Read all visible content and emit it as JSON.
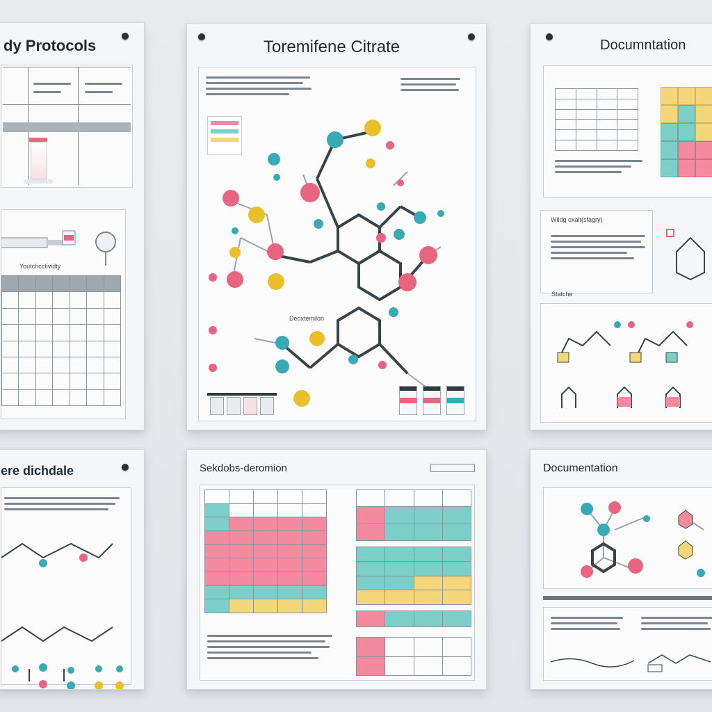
{
  "posters": {
    "top_left": {
      "title": "dy Protocols",
      "section_label": "Youtchcctividty"
    },
    "top_center": {
      "title": "Toremifene Citrate",
      "labels": {
        "description": "Deoxtemilon"
      }
    },
    "top_right": {
      "title": "Documntation",
      "section_label": "Wildg oxalt(sfagry)",
      "sub_label": "Statche"
    },
    "bottom_left": {
      "title": "ere dichdale"
    },
    "bottom_center": {
      "title": "Sekdobs-deromion"
    },
    "bottom_right": {
      "title": "Documentation"
    }
  },
  "colors": {
    "pink": "#e8647f",
    "teal": "#39a9b3",
    "yellow": "#e9bf2c",
    "dark": "#2f3a3e",
    "table_pink": "#f38aa0",
    "table_teal": "#7ccfc9",
    "table_yellow": "#f4d77a"
  }
}
